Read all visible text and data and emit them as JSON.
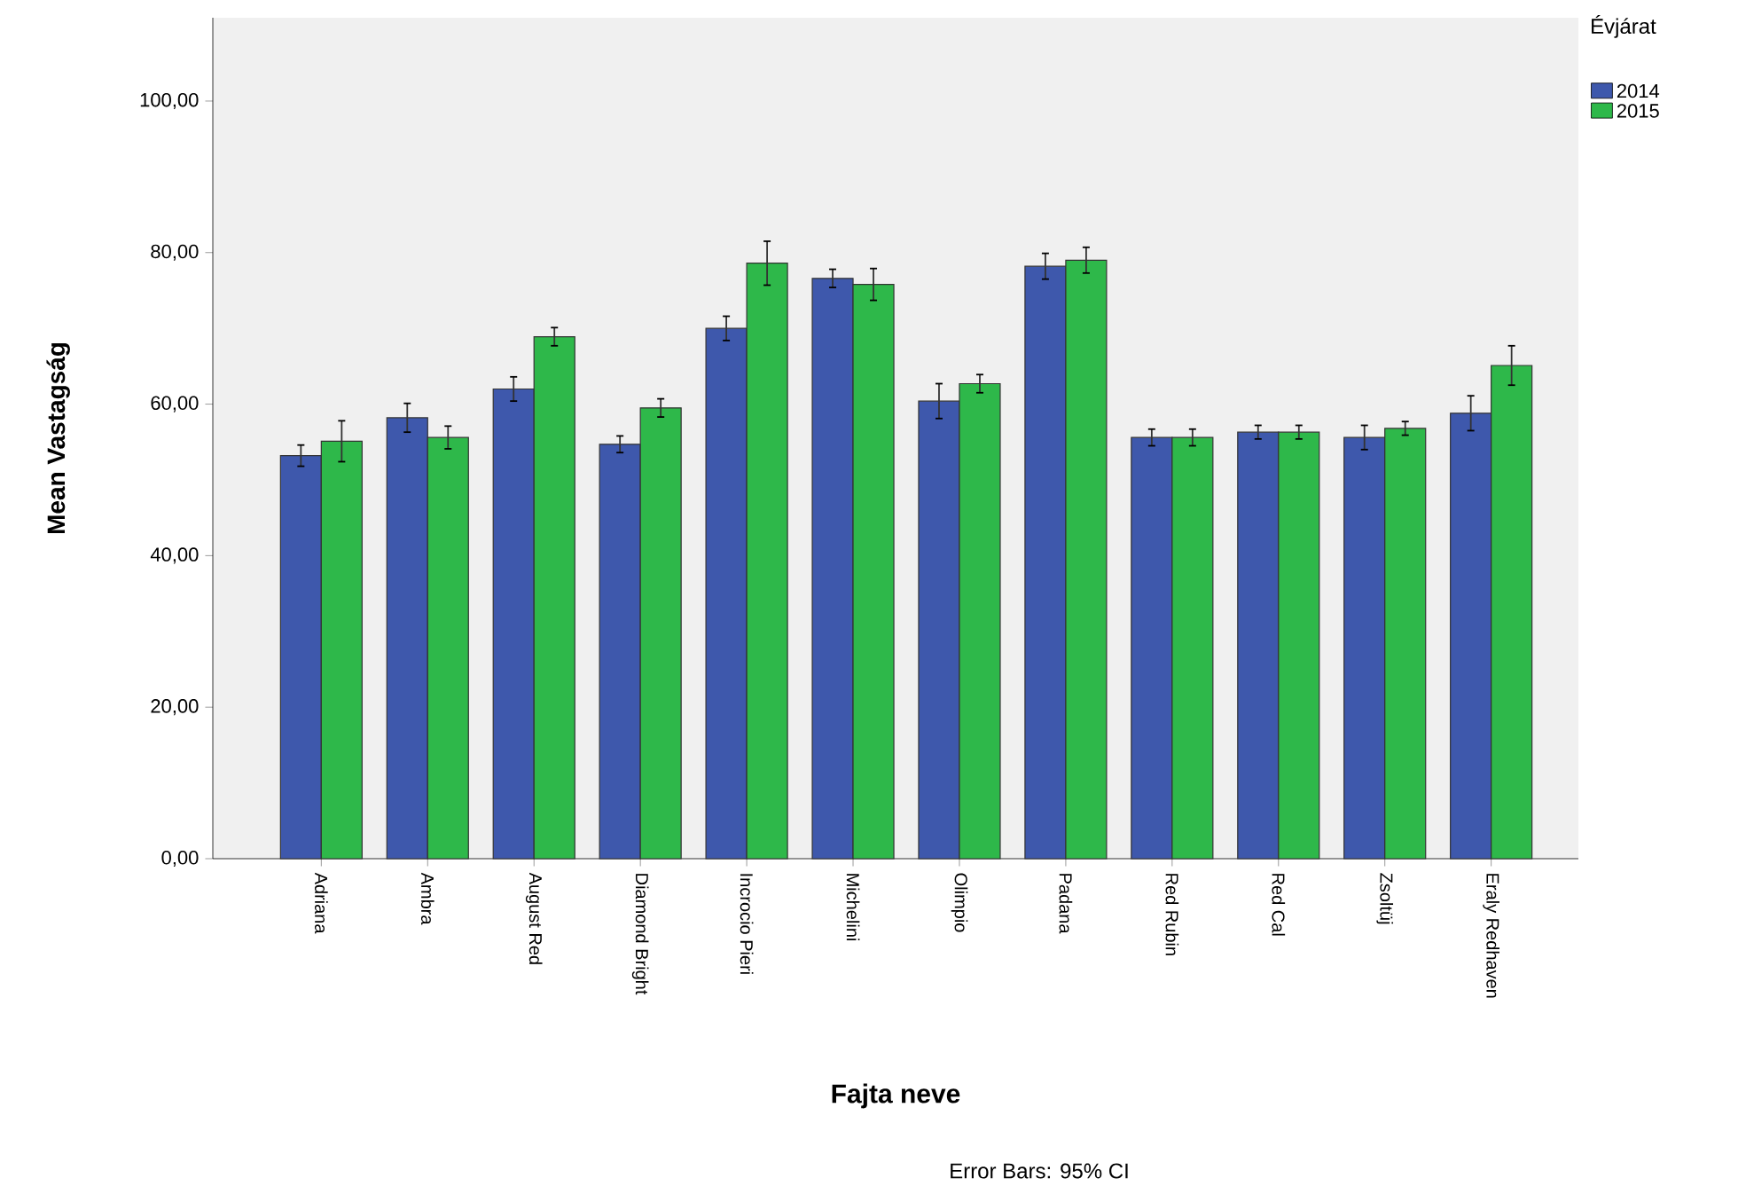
{
  "chart_data": {
    "type": "bar",
    "xlabel": "Fajta neve",
    "ylabel": "Mean Vastagság",
    "legend_title": "Évjárat",
    "categories": [
      "Adriana",
      "Ambra",
      "August Red",
      "Diamond Bright",
      "Incrocio Pieri",
      "Michelini",
      "Olimpio",
      "Padana",
      "Red Rubin",
      "Red Cal",
      "Zsoltüj",
      "Eraly Redhaven"
    ],
    "series": [
      {
        "name": "2014",
        "color": "#3e58ac",
        "values": [
          53.2,
          58.2,
          62.0,
          54.7,
          70.0,
          76.6,
          60.4,
          78.2,
          55.6,
          56.3,
          55.6,
          58.8
        ],
        "errors": [
          1.4,
          1.9,
          1.6,
          1.1,
          1.6,
          1.2,
          2.3,
          1.7,
          1.1,
          0.9,
          1.6,
          2.3
        ]
      },
      {
        "name": "2015",
        "color": "#2eb84a",
        "values": [
          55.1,
          55.6,
          68.9,
          59.5,
          78.6,
          75.8,
          62.7,
          79.0,
          55.6,
          56.3,
          56.8,
          65.1
        ],
        "errors": [
          2.7,
          1.5,
          1.2,
          1.2,
          2.9,
          2.1,
          1.2,
          1.7,
          1.1,
          0.9,
          0.9,
          2.6
        ]
      }
    ],
    "ylim": [
      0,
      111
    ],
    "yticks": [
      {
        "value": 0,
        "label": "0,00"
      },
      {
        "value": 20,
        "label": "20,00"
      },
      {
        "value": 40,
        "label": "40,00"
      },
      {
        "value": 60,
        "label": "60,00"
      },
      {
        "value": 80,
        "label": "80,00"
      },
      {
        "value": 100,
        "label": "100,00"
      }
    ],
    "legend": "top right",
    "grid": false,
    "annotations": [
      "Error Bars: 95% CI"
    ]
  }
}
